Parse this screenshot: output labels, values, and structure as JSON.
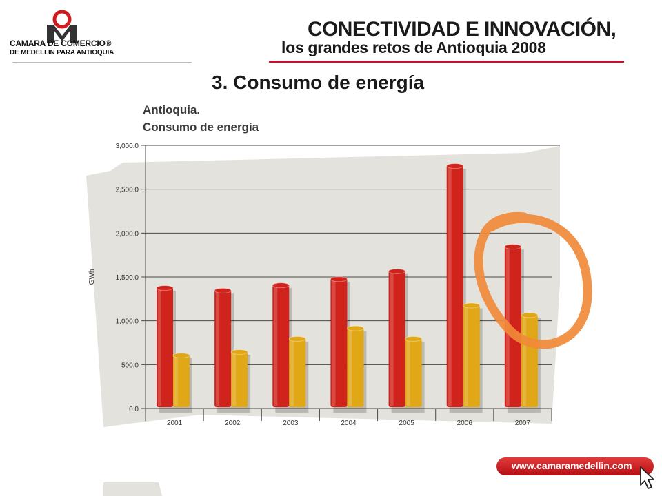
{
  "header": {
    "logo_line1": "CAMARA DE COMERCIO®",
    "logo_line2": "DE MEDELLIN PARA ANTIOQUIA",
    "headline": "CONECTIVIDAD E INNOVACIÓN,",
    "subheadline": "los  grandes retos de Antioquia 2008"
  },
  "slide_title": "3. Consumo de energía",
  "footer": {
    "url": "www.camaramedellin.com",
    "cursor_icon": "cursor-arrow-icon"
  },
  "colors": {
    "series_red": "#d0231b",
    "series_yellow": "#e0a817",
    "brand_red": "#c8102e",
    "highlight_orange": "#f08a38"
  },
  "chart_data": {
    "type": "bar",
    "title_line1": "Antioquia.",
    "title_line2": "Consumo de energía",
    "xlabel": "",
    "ylabel": "GWh",
    "ylim": [
      0,
      3000
    ],
    "yticks": [
      "0.0",
      "500.0",
      "1,000.0",
      "1,500.0",
      "2,000.0",
      "2,500.0",
      "3,000.0"
    ],
    "categories": [
      "2001",
      "2002",
      "2003",
      "2004",
      "2005",
      "2006",
      "2007"
    ],
    "series": [
      {
        "values": [
          1390,
          1360,
          1420,
          1490,
          1580,
          2780,
          1860
        ]
      },
      {
        "values": [
          620,
          660,
          810,
          930,
          810,
          1190,
          1080
        ]
      }
    ],
    "grid": true,
    "legend": "none",
    "annotation": "orange hand-drawn circle around 2006–2007 bars"
  }
}
